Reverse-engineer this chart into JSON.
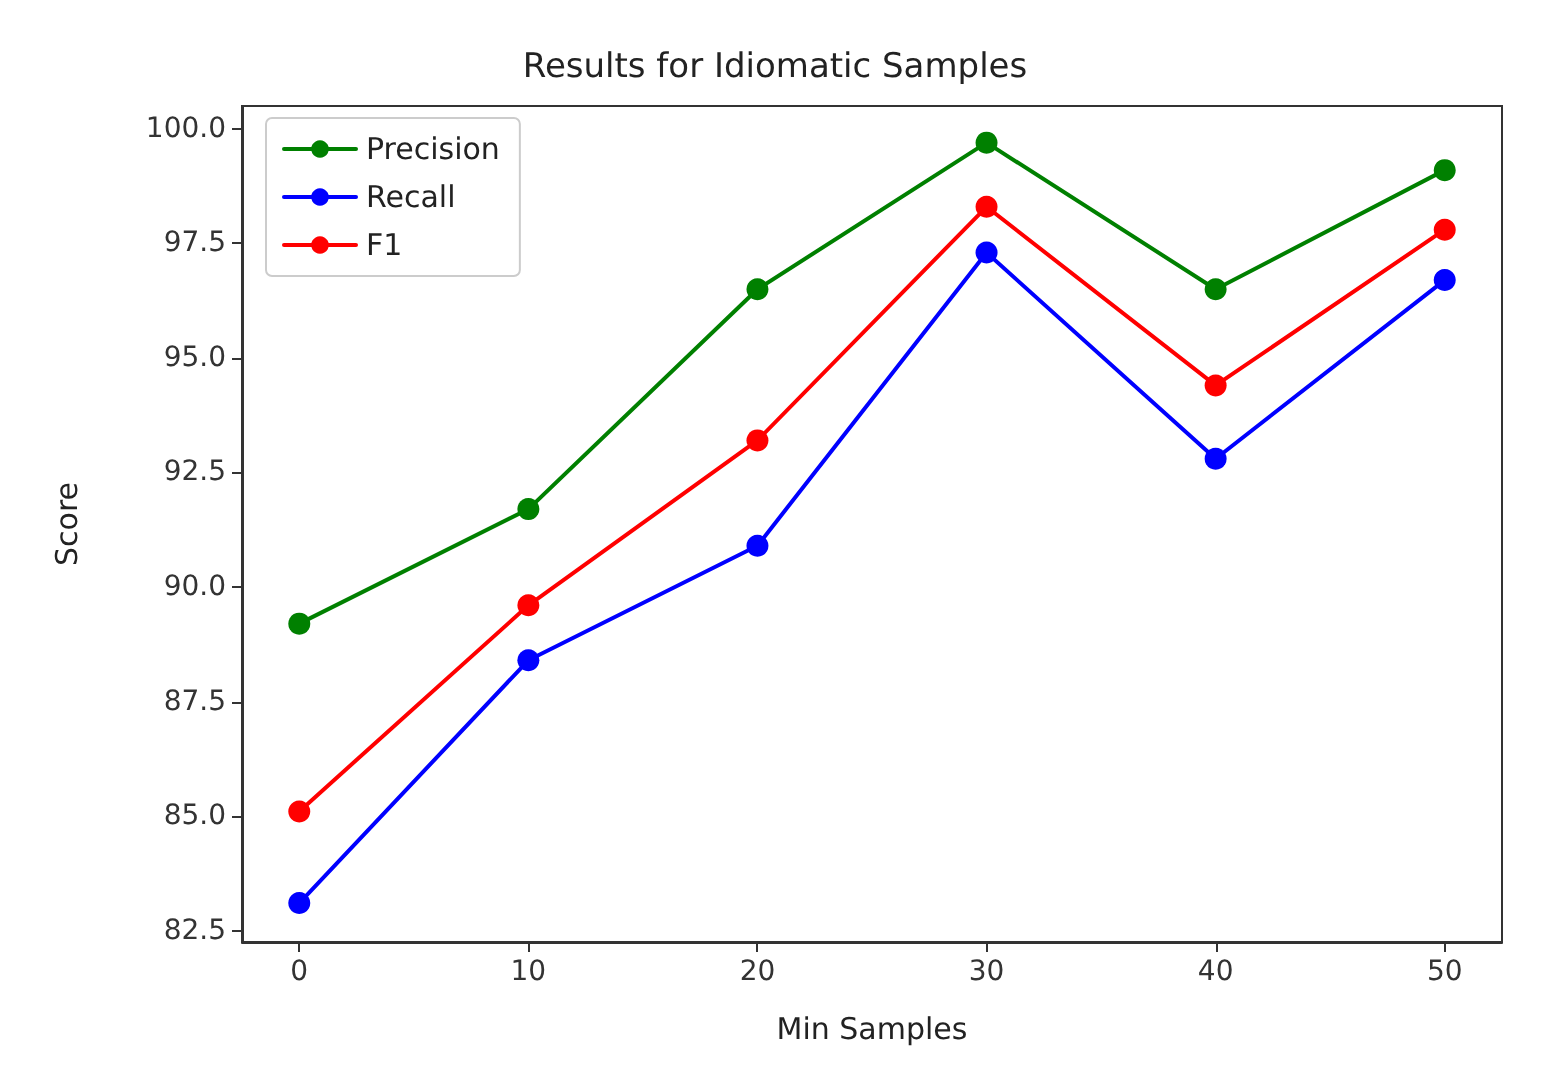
{
  "chart_data": {
    "type": "line",
    "title": "Results for Idiomatic Samples",
    "xlabel": "Min Samples",
    "ylabel": "Score",
    "x": [
      0,
      10,
      20,
      30,
      40,
      50
    ],
    "series": [
      {
        "name": "Precision",
        "color": "#008000",
        "values": [
          89.2,
          91.7,
          96.5,
          99.7,
          96.5,
          99.1
        ]
      },
      {
        "name": "Recall",
        "color": "#0000ff",
        "values": [
          83.1,
          88.4,
          90.9,
          97.3,
          92.8,
          96.7
        ]
      },
      {
        "name": "F1",
        "color": "#ff0000",
        "values": [
          85.1,
          89.6,
          93.2,
          98.3,
          94.4,
          97.8
        ]
      }
    ],
    "xlim": [
      -2.5,
      52.5
    ],
    "ylim": [
      82.25,
      100.5
    ],
    "xticks": [
      0,
      10,
      20,
      30,
      40,
      50
    ],
    "yticks": [
      {
        "value": 82.5,
        "label": "82.5"
      },
      {
        "value": 85,
        "label": "85.0"
      },
      {
        "value": 87.5,
        "label": "87.5"
      },
      {
        "value": 90,
        "label": "90.0"
      },
      {
        "value": 92.5,
        "label": "92.5"
      },
      {
        "value": 95,
        "label": "95.0"
      },
      {
        "value": 97.5,
        "label": "97.5"
      },
      {
        "value": 100,
        "label": "100.0"
      }
    ],
    "grid": false,
    "legend": "top left",
    "marker": "circle",
    "line_style": "solid"
  }
}
